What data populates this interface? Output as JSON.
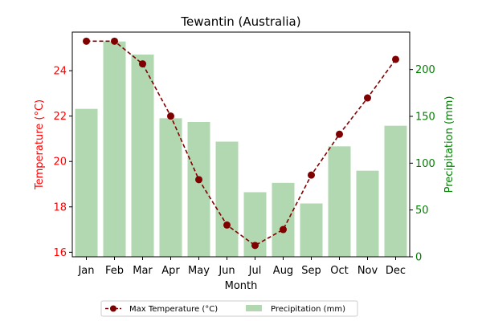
{
  "chart_data": {
    "type": "bar+line",
    "title": "Tewantin (Australia)",
    "xlabel": "Month",
    "categories": [
      "Jan",
      "Feb",
      "Mar",
      "Apr",
      "May",
      "Jun",
      "Jul",
      "Aug",
      "Sep",
      "Oct",
      "Nov",
      "Dec"
    ],
    "left_axis": {
      "label": "Temperature (°C)",
      "color": "#ff0000",
      "ylim": [
        15.8,
        25.7
      ],
      "ticks": [
        16,
        18,
        20,
        22,
        24
      ]
    },
    "right_axis": {
      "label": "Precipitation (mm)",
      "color": "#008000",
      "ylim": [
        0,
        240
      ],
      "ticks": [
        0,
        50,
        100,
        150,
        200
      ]
    },
    "series": [
      {
        "name": "Max Temperature (°C)",
        "kind": "line",
        "axis": "left",
        "color": "#800000",
        "values": [
          25.3,
          25.3,
          24.3,
          22.0,
          19.2,
          17.2,
          16.3,
          17.0,
          19.4,
          21.2,
          22.8,
          24.5
        ]
      },
      {
        "name": "Precipitation (mm)",
        "kind": "bar",
        "axis": "right",
        "color": "#b2d8b2",
        "values": [
          158,
          230,
          216,
          148,
          144,
          123,
          69,
          79,
          57,
          118,
          92,
          140
        ]
      }
    ],
    "legend": "bottom-center",
    "grid": false
  }
}
